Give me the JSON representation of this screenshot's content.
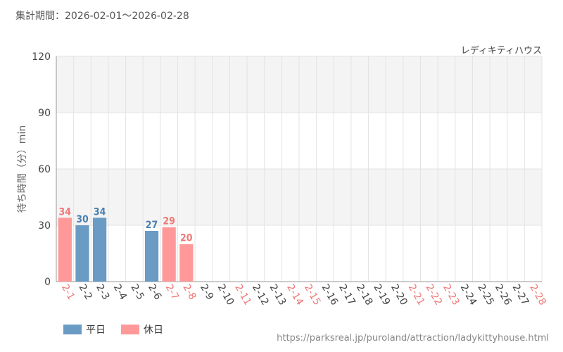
{
  "header": {
    "period_label": "集計期間：2026-02-01〜2026-02-28",
    "attraction_name": "レディキティハウス"
  },
  "footer": {
    "source_url": "https://parksreal.jp/puroland/attraction/ladykittyhouse.html"
  },
  "legend": {
    "weekday_label": "平日",
    "holiday_label": "休日"
  },
  "colors": {
    "weekday": "#6a9bc4",
    "holiday": "#ff9999",
    "weekday_text": "#4a7fae",
    "holiday_text": "#f07878",
    "tick_text": "#444444",
    "band": "#f4f4f4",
    "grid": "#e3e3e3"
  },
  "chart_data": {
    "type": "bar",
    "ylabel": "待ち時間（分）min",
    "ylim": [
      0,
      120
    ],
    "yticks": [
      0,
      30,
      60,
      90,
      120
    ],
    "categories": [
      "2-1",
      "2-2",
      "2-3",
      "2-4",
      "2-5",
      "2-6",
      "2-7",
      "2-8",
      "2-9",
      "2-10",
      "2-11",
      "2-12",
      "2-13",
      "2-14",
      "2-15",
      "2-16",
      "2-17",
      "2-18",
      "2-19",
      "2-20",
      "2-21",
      "2-22",
      "2-23",
      "2-24",
      "2-25",
      "2-26",
      "2-27",
      "2-28"
    ],
    "day_type": [
      "holiday",
      "weekday",
      "weekday",
      "weekday",
      "weekday",
      "weekday",
      "holiday",
      "holiday",
      "weekday",
      "weekday",
      "holiday",
      "weekday",
      "weekday",
      "holiday",
      "holiday",
      "weekday",
      "weekday",
      "weekday",
      "weekday",
      "weekday",
      "holiday",
      "holiday",
      "holiday",
      "weekday",
      "weekday",
      "weekday",
      "weekday",
      "holiday"
    ],
    "values": [
      34,
      30,
      34,
      null,
      null,
      27,
      29,
      20,
      null,
      null,
      null,
      null,
      null,
      null,
      null,
      null,
      null,
      null,
      null,
      null,
      null,
      null,
      null,
      null,
      null,
      null,
      null,
      null
    ],
    "series": [
      {
        "name": "平日",
        "day_type": "weekday"
      },
      {
        "name": "休日",
        "day_type": "holiday"
      }
    ],
    "grid": true,
    "legend_position": "bottom-left"
  }
}
